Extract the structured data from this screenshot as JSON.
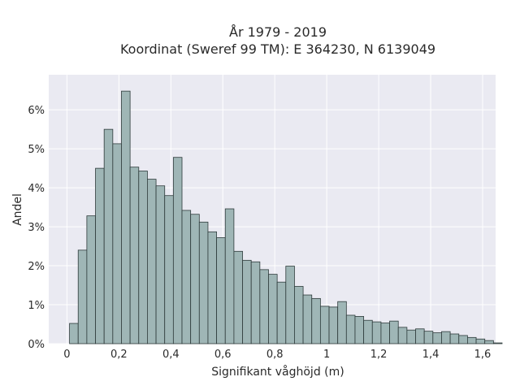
{
  "chart_data": {
    "type": "bar",
    "title_line1": "År 1979 - 2019",
    "title_line2": "Koordinat (Sweref 99 TM): E 364230, N 6139049",
    "xlabel": "Signifikant våghöjd (m)",
    "ylabel": "Andel",
    "xlim": [
      -0.07,
      1.65
    ],
    "ylim": [
      0,
      6.9
    ],
    "x_ticks": [
      0,
      0.2,
      0.4,
      0.6,
      0.8,
      1,
      1.2,
      1.4,
      1.6
    ],
    "x_tick_labels": [
      "0",
      "0,2",
      "0,4",
      "0,6",
      "0,8",
      "1",
      "1,2",
      "1,4",
      "1,6"
    ],
    "y_ticks": [
      0,
      1,
      2,
      3,
      4,
      5,
      6
    ],
    "y_tick_labels": [
      "0%",
      "1%",
      "2%",
      "3%",
      "4%",
      "5%",
      "6%"
    ],
    "grid": true,
    "bin_start": 0.01,
    "bin_width": 0.0333,
    "values": [
      0.52,
      2.4,
      3.28,
      4.5,
      5.5,
      5.13,
      6.48,
      4.53,
      4.43,
      4.22,
      4.05,
      3.8,
      4.78,
      3.42,
      3.32,
      3.12,
      2.87,
      2.72,
      3.46,
      2.37,
      2.14,
      2.1,
      1.9,
      1.78,
      1.58,
      1.99,
      1.47,
      1.25,
      1.16,
      0.96,
      0.94,
      1.08,
      0.73,
      0.7,
      0.6,
      0.56,
      0.53,
      0.58,
      0.42,
      0.35,
      0.38,
      0.32,
      0.28,
      0.31,
      0.25,
      0.21,
      0.16,
      0.12,
      0.08,
      0.02
    ],
    "colors": {
      "bar_fill": "#9fb6b6",
      "bar_stroke": "#2e3b3b",
      "plot_bg": "#eaeaf2",
      "grid": "#ffffff"
    }
  }
}
